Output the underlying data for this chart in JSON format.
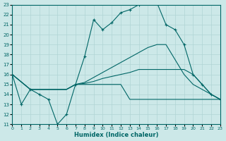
{
  "xlabel": "Humidex (Indice chaleur)",
  "xlim": [
    0,
    23
  ],
  "ylim": [
    11,
    23
  ],
  "xticks": [
    0,
    1,
    2,
    3,
    4,
    5,
    6,
    7,
    8,
    9,
    10,
    11,
    12,
    13,
    14,
    15,
    16,
    17,
    18,
    19,
    20,
    21,
    22,
    23
  ],
  "yticks": [
    11,
    12,
    13,
    14,
    15,
    16,
    17,
    18,
    19,
    20,
    21,
    22,
    23
  ],
  "bg_color": "#cce8e8",
  "line_color": "#006666",
  "grid_color": "#b0d4d4",
  "curve1_x": [
    0,
    1,
    2,
    3,
    4,
    5,
    6,
    7,
    8,
    9,
    10,
    11,
    12,
    13,
    14,
    15,
    16,
    17,
    18,
    19,
    20,
    21,
    22,
    23
  ],
  "curve1_y": [
    16,
    13,
    14.5,
    14,
    13.5,
    11,
    12,
    15,
    17.8,
    21.5,
    20.5,
    21.2,
    22.2,
    22.5,
    23.0,
    23.2,
    23.2,
    21,
    20.5,
    19,
    16,
    15,
    14,
    13.5
  ],
  "curve2_x": [
    0,
    2,
    3,
    5,
    6,
    7,
    8,
    9,
    10,
    11,
    12,
    13,
    14,
    15,
    16,
    17,
    19,
    20,
    21,
    22,
    23
  ],
  "curve2_y": [
    16,
    14.5,
    14.5,
    14.5,
    14.5,
    15.0,
    15.2,
    15.7,
    16.2,
    16.7,
    17.2,
    17.7,
    18.2,
    18.7,
    19.0,
    19.0,
    16.0,
    15.0,
    14.5,
    14.0,
    13.5
  ],
  "curve3_x": [
    0,
    2,
    3,
    5,
    6,
    7,
    8,
    9,
    10,
    11,
    12,
    13,
    14,
    15,
    16,
    17,
    18,
    19,
    20,
    21,
    22,
    23
  ],
  "curve3_y": [
    16,
    14.5,
    14.5,
    14.5,
    14.5,
    15.0,
    15.1,
    15.3,
    15.6,
    15.8,
    16.0,
    16.2,
    16.5,
    16.5,
    16.5,
    16.5,
    16.5,
    16.5,
    16.0,
    15.0,
    14.0,
    13.5
  ],
  "curve4_x": [
    0,
    2,
    3,
    5,
    6,
    7,
    8,
    9,
    10,
    11,
    12,
    13,
    14,
    15,
    16,
    17,
    18,
    19,
    20,
    21,
    22,
    23
  ],
  "curve4_y": [
    16,
    14.5,
    14.5,
    14.5,
    14.5,
    15.0,
    15.0,
    15.0,
    15.0,
    15.0,
    15.0,
    13.5,
    13.5,
    13.5,
    13.5,
    13.5,
    13.5,
    13.5,
    13.5,
    13.5,
    13.5,
    13.5
  ]
}
